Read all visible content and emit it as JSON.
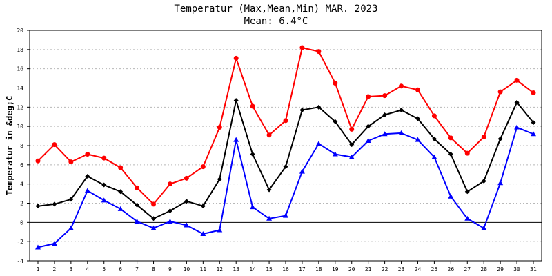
{
  "chart_data": {
    "type": "line",
    "title": "Temperatur (Max,Mean,Min) MAR. 2023",
    "subtitle": "Mean: 6.4°C",
    "ylabel": "Temperatur in &deg;C",
    "xlabel": "",
    "ylim": [
      -4,
      20
    ],
    "yticks": [
      -4,
      -2,
      0,
      2,
      4,
      6,
      8,
      10,
      12,
      14,
      16,
      18,
      20
    ],
    "x": [
      1,
      2,
      3,
      4,
      5,
      6,
      7,
      8,
      9,
      10,
      11,
      12,
      13,
      14,
      15,
      16,
      17,
      18,
      19,
      20,
      21,
      22,
      23,
      24,
      25,
      26,
      27,
      28,
      29,
      30,
      31
    ],
    "grid": true,
    "series": [
      {
        "color": "#ff0000",
        "marker": "circle",
        "values": [
          6.4,
          8.1,
          6.3,
          7.1,
          6.7,
          5.7,
          3.6,
          1.9,
          4.0,
          4.6,
          5.8,
          9.9,
          17.1,
          12.1,
          9.1,
          10.6,
          18.2,
          17.8,
          14.5,
          9.7,
          13.1,
          13.2,
          14.2,
          13.8,
          11.1,
          8.8,
          7.2,
          8.9,
          13.6,
          14.8,
          13.5
        ]
      },
      {
        "color": "#000000",
        "marker": "diamond",
        "values": [
          1.7,
          1.9,
          2.4,
          4.8,
          3.9,
          3.2,
          1.8,
          0.4,
          1.2,
          2.2,
          1.7,
          4.5,
          12.7,
          7.1,
          3.4,
          5.8,
          11.7,
          12.0,
          10.5,
          8.1,
          10.0,
          11.2,
          11.7,
          10.8,
          8.7,
          7.1,
          3.2,
          4.3,
          8.7,
          12.5,
          10.4
        ]
      },
      {
        "color": "#0000ff",
        "marker": "triangle",
        "values": [
          -2.6,
          -2.2,
          -0.6,
          3.3,
          2.3,
          1.4,
          0.1,
          -0.6,
          0.1,
          -0.3,
          -1.2,
          -0.8,
          8.6,
          1.6,
          0.4,
          0.7,
          5.3,
          8.2,
          7.1,
          6.8,
          8.5,
          9.2,
          9.3,
          8.6,
          6.8,
          2.7,
          0.4,
          -0.6,
          4.1,
          9.9,
          9.2
        ]
      }
    ]
  }
}
